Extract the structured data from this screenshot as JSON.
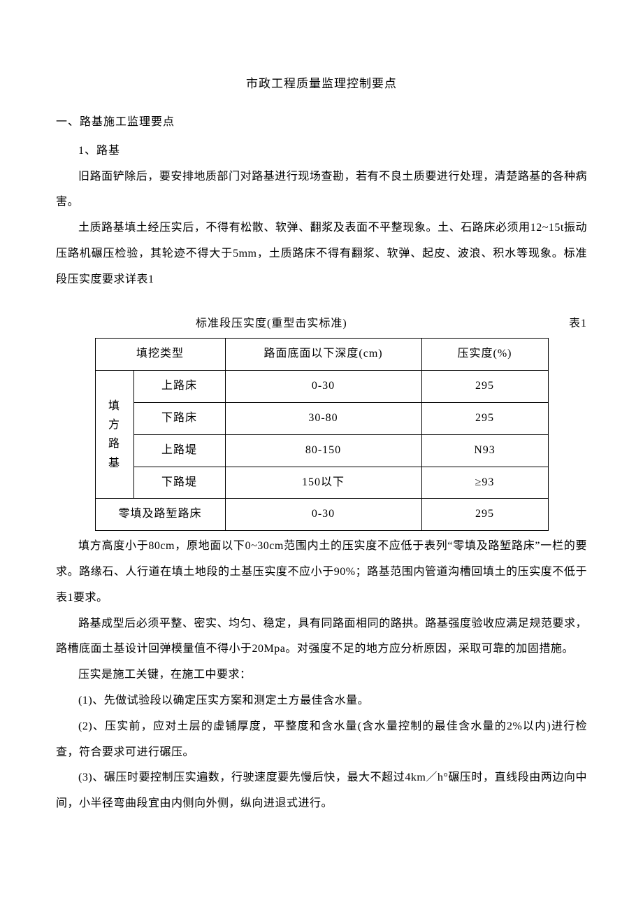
{
  "title": "市政工程质量监理控制要点",
  "section1": {
    "heading": "一、路基施工监理要点",
    "sub1": "1、路基",
    "p1": "旧路面铲除后，要安排地质部门对路基进行现场查勘，若有不良土质要进行处理，清楚路基的各种病害。",
    "p2": "土质路基填土经压实后，不得有松散、软弹、翻浆及表面不平整现象。土、石路床必须用12~15t振动压路机碾压检验，其轮迹不得大于5mm，土质路床不得有翻浆、软弹、起皮、波浪、积水等现象。标准段压实度要求详表1",
    "table": {
      "caption": "标准段压实度(重型击实标准)",
      "label": "表1",
      "header": {
        "c1": "填挖类型",
        "c2": "路面底面以下深度(cm)",
        "c3": "压实度(%)"
      },
      "groupLabel": "填方路基",
      "rows": [
        {
          "name": "上路床",
          "depth": "0-30",
          "comp": "295"
        },
        {
          "name": "下路床",
          "depth": "30-80",
          "comp": "295"
        },
        {
          "name": "上路堤",
          "depth": "80-150",
          "comp": "N93"
        },
        {
          "name": "下路堤",
          "depth": "150以下",
          "comp": "≥93"
        }
      ],
      "lastRow": {
        "name": "零填及路堑路床",
        "depth": "0-30",
        "comp": "295"
      }
    },
    "p3": "填方高度小于80cm，原地面以下0~30cm范围内土的压实度不应低于表列“零填及路堑路床”一栏的要求。路缘石、人行道在填土地段的土基压实度不应小于90%；路基范围内管道沟槽回填土的压实度不低于表1要求。",
    "p4": "路基成型后必须平整、密实、均匀、稳定，具有同路面相同的路拱。路基强度验收应满足规范要求，路槽底面土基设计回弹模量值不得小于20Mpa。对强度不足的地方应分析原因，采取可靠的加固措施。",
    "p5": "压实是施工关键，在施工中要求：",
    "p6": "(1)、先做试验段以确定压实方案和测定土方最佳含水量。",
    "p7": "(2)、压实前，应对土层的虚铺厚度，平整度和含水量(含水量控制的最佳含水量的2%以内)进行检查，符合要求可进行碾压。",
    "p8": "(3)、碾压时要控制压实遍数，行驶速度要先慢后快，最大不超过4km／h°碾压时，直线段由两边向中间，小半径弯曲段宜由内侧向外侧，纵向进退式进行。"
  }
}
